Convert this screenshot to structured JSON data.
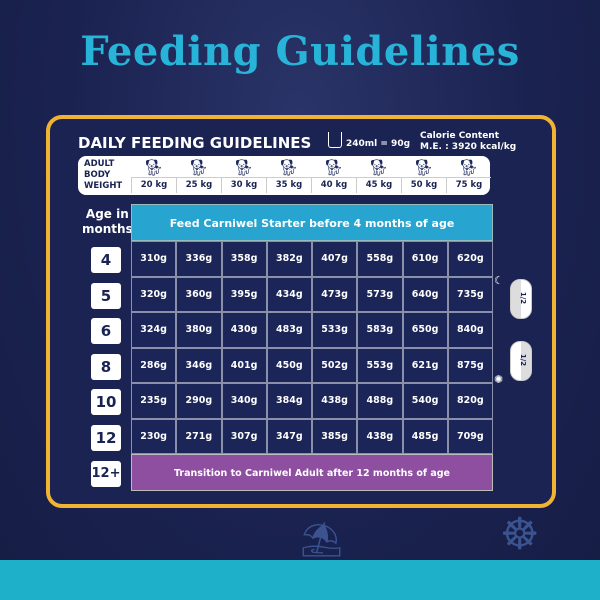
{
  "title": "Feeding Guidelines",
  "card": {
    "heading": "DAILY FEEDING GUIDELINES",
    "cup_label": "240ml = 90g",
    "calorie_title": "Calorie Content",
    "calorie_value": "M.E. : 3920 kcal/kg",
    "weight_label": [
      "ADULT",
      "BODY",
      "WEIGHT"
    ],
    "weights": [
      "20 kg",
      "25 kg",
      "30 kg",
      "35 kg",
      "40 kg",
      "45 kg",
      "50 kg",
      "75 kg"
    ],
    "age_label": [
      "Age in",
      "months"
    ],
    "starter_note": "Feed Carniwel Starter before 4 months of age",
    "rows": [
      {
        "age": "4",
        "values": [
          "310g",
          "336g",
          "358g",
          "382g",
          "407g",
          "558g",
          "610g",
          "620g"
        ]
      },
      {
        "age": "5",
        "values": [
          "320g",
          "360g",
          "395g",
          "434g",
          "473g",
          "573g",
          "640g",
          "735g"
        ]
      },
      {
        "age": "6",
        "values": [
          "324g",
          "380g",
          "430g",
          "483g",
          "533g",
          "583g",
          "650g",
          "840g"
        ]
      },
      {
        "age": "8",
        "values": [
          "286g",
          "346g",
          "401g",
          "450g",
          "502g",
          "553g",
          "621g",
          "875g"
        ]
      },
      {
        "age": "10",
        "values": [
          "235g",
          "290g",
          "340g",
          "384g",
          "438g",
          "488g",
          "540g",
          "820g"
        ]
      },
      {
        "age": "12",
        "values": [
          "230g",
          "271g",
          "307g",
          "347g",
          "385g",
          "438g",
          "485g",
          "709g"
        ]
      }
    ],
    "last_age": "12+",
    "transition_note": "Transition to Carniwel Adult after 12 months of age",
    "bowl_fraction": "1/2",
    "icons": [
      "measuring-cup-icon",
      "dog-icon",
      "moon-icon",
      "sun-icon",
      "food-bowl-icon"
    ]
  },
  "colors": {
    "background": "#1a2250",
    "title": "#27b4d8",
    "border": "#f2b233",
    "starter": "#27a4cf",
    "transition": "#8e4fa0",
    "band": "#1fb0c9"
  }
}
